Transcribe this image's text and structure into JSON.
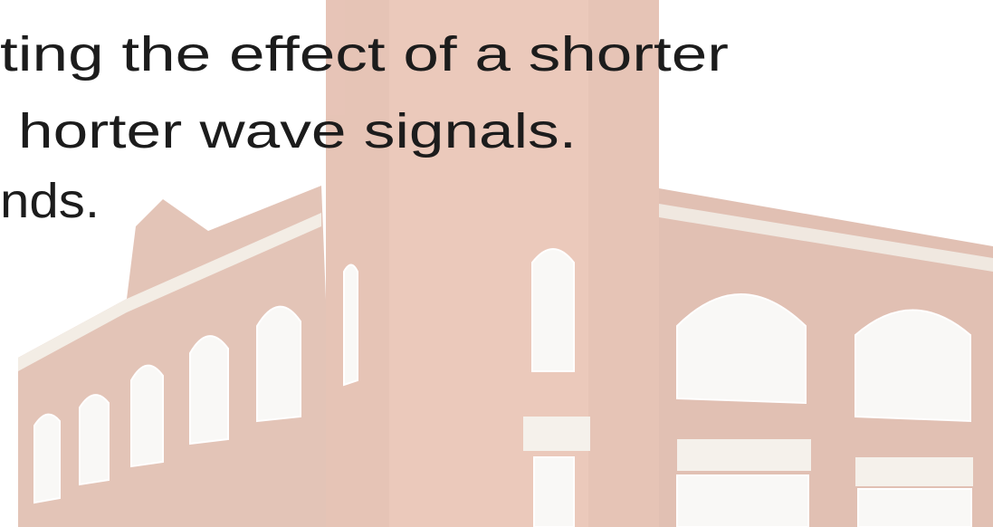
{
  "slide": {
    "lines": [
      "ting the effect of a shorter",
      "horter wave signals.",
      "nds."
    ]
  }
}
